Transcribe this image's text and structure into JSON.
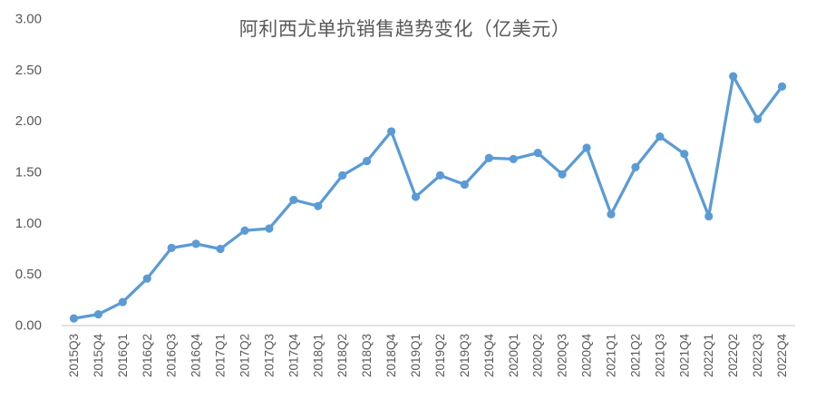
{
  "chart_data": {
    "type": "line",
    "title": "阿利西尤单抗销售趋势变化（亿美元）",
    "categories": [
      "2015Q3",
      "2015Q4",
      "2016Q1",
      "2016Q2",
      "2016Q3",
      "2016Q4",
      "2017Q1",
      "2017Q2",
      "2017Q3",
      "2017Q4",
      "2018Q1",
      "2018Q2",
      "2018Q3",
      "2018Q4",
      "2019Q1",
      "2019Q2",
      "2019Q3",
      "2019Q4",
      "2020Q1",
      "2020Q2",
      "2020Q3",
      "2020Q4",
      "2021Q1",
      "2021Q2",
      "2021Q3",
      "2021Q4",
      "2022Q1",
      "2022Q2",
      "2022Q3",
      "2022Q4"
    ],
    "values": [
      0.07,
      0.11,
      0.23,
      0.46,
      0.76,
      0.8,
      0.75,
      0.93,
      0.95,
      1.23,
      1.17,
      1.47,
      1.61,
      1.9,
      1.26,
      1.47,
      1.38,
      1.64,
      1.63,
      1.69,
      1.48,
      1.74,
      1.09,
      1.55,
      1.85,
      1.68,
      1.07,
      2.44,
      2.02,
      2.34
    ],
    "xlabel": "",
    "ylabel": "",
    "ylim": [
      0,
      3
    ],
    "yticks": [
      0,
      0.5,
      1,
      1.5,
      2,
      2.5,
      3
    ],
    "ytick_labels": [
      "0.00",
      "0.50",
      "1.00",
      "1.50",
      "2.00",
      "2.50",
      "3.00"
    ],
    "grid": false,
    "legend": "none",
    "x_label_rotation": 90,
    "colors": {
      "line": "#5B9BD5",
      "marker": "#5B9BD5",
      "axis_line": "#D9D9D9",
      "tick_label": "#595959",
      "title": "#595959",
      "background": "#FFFFFF"
    }
  }
}
